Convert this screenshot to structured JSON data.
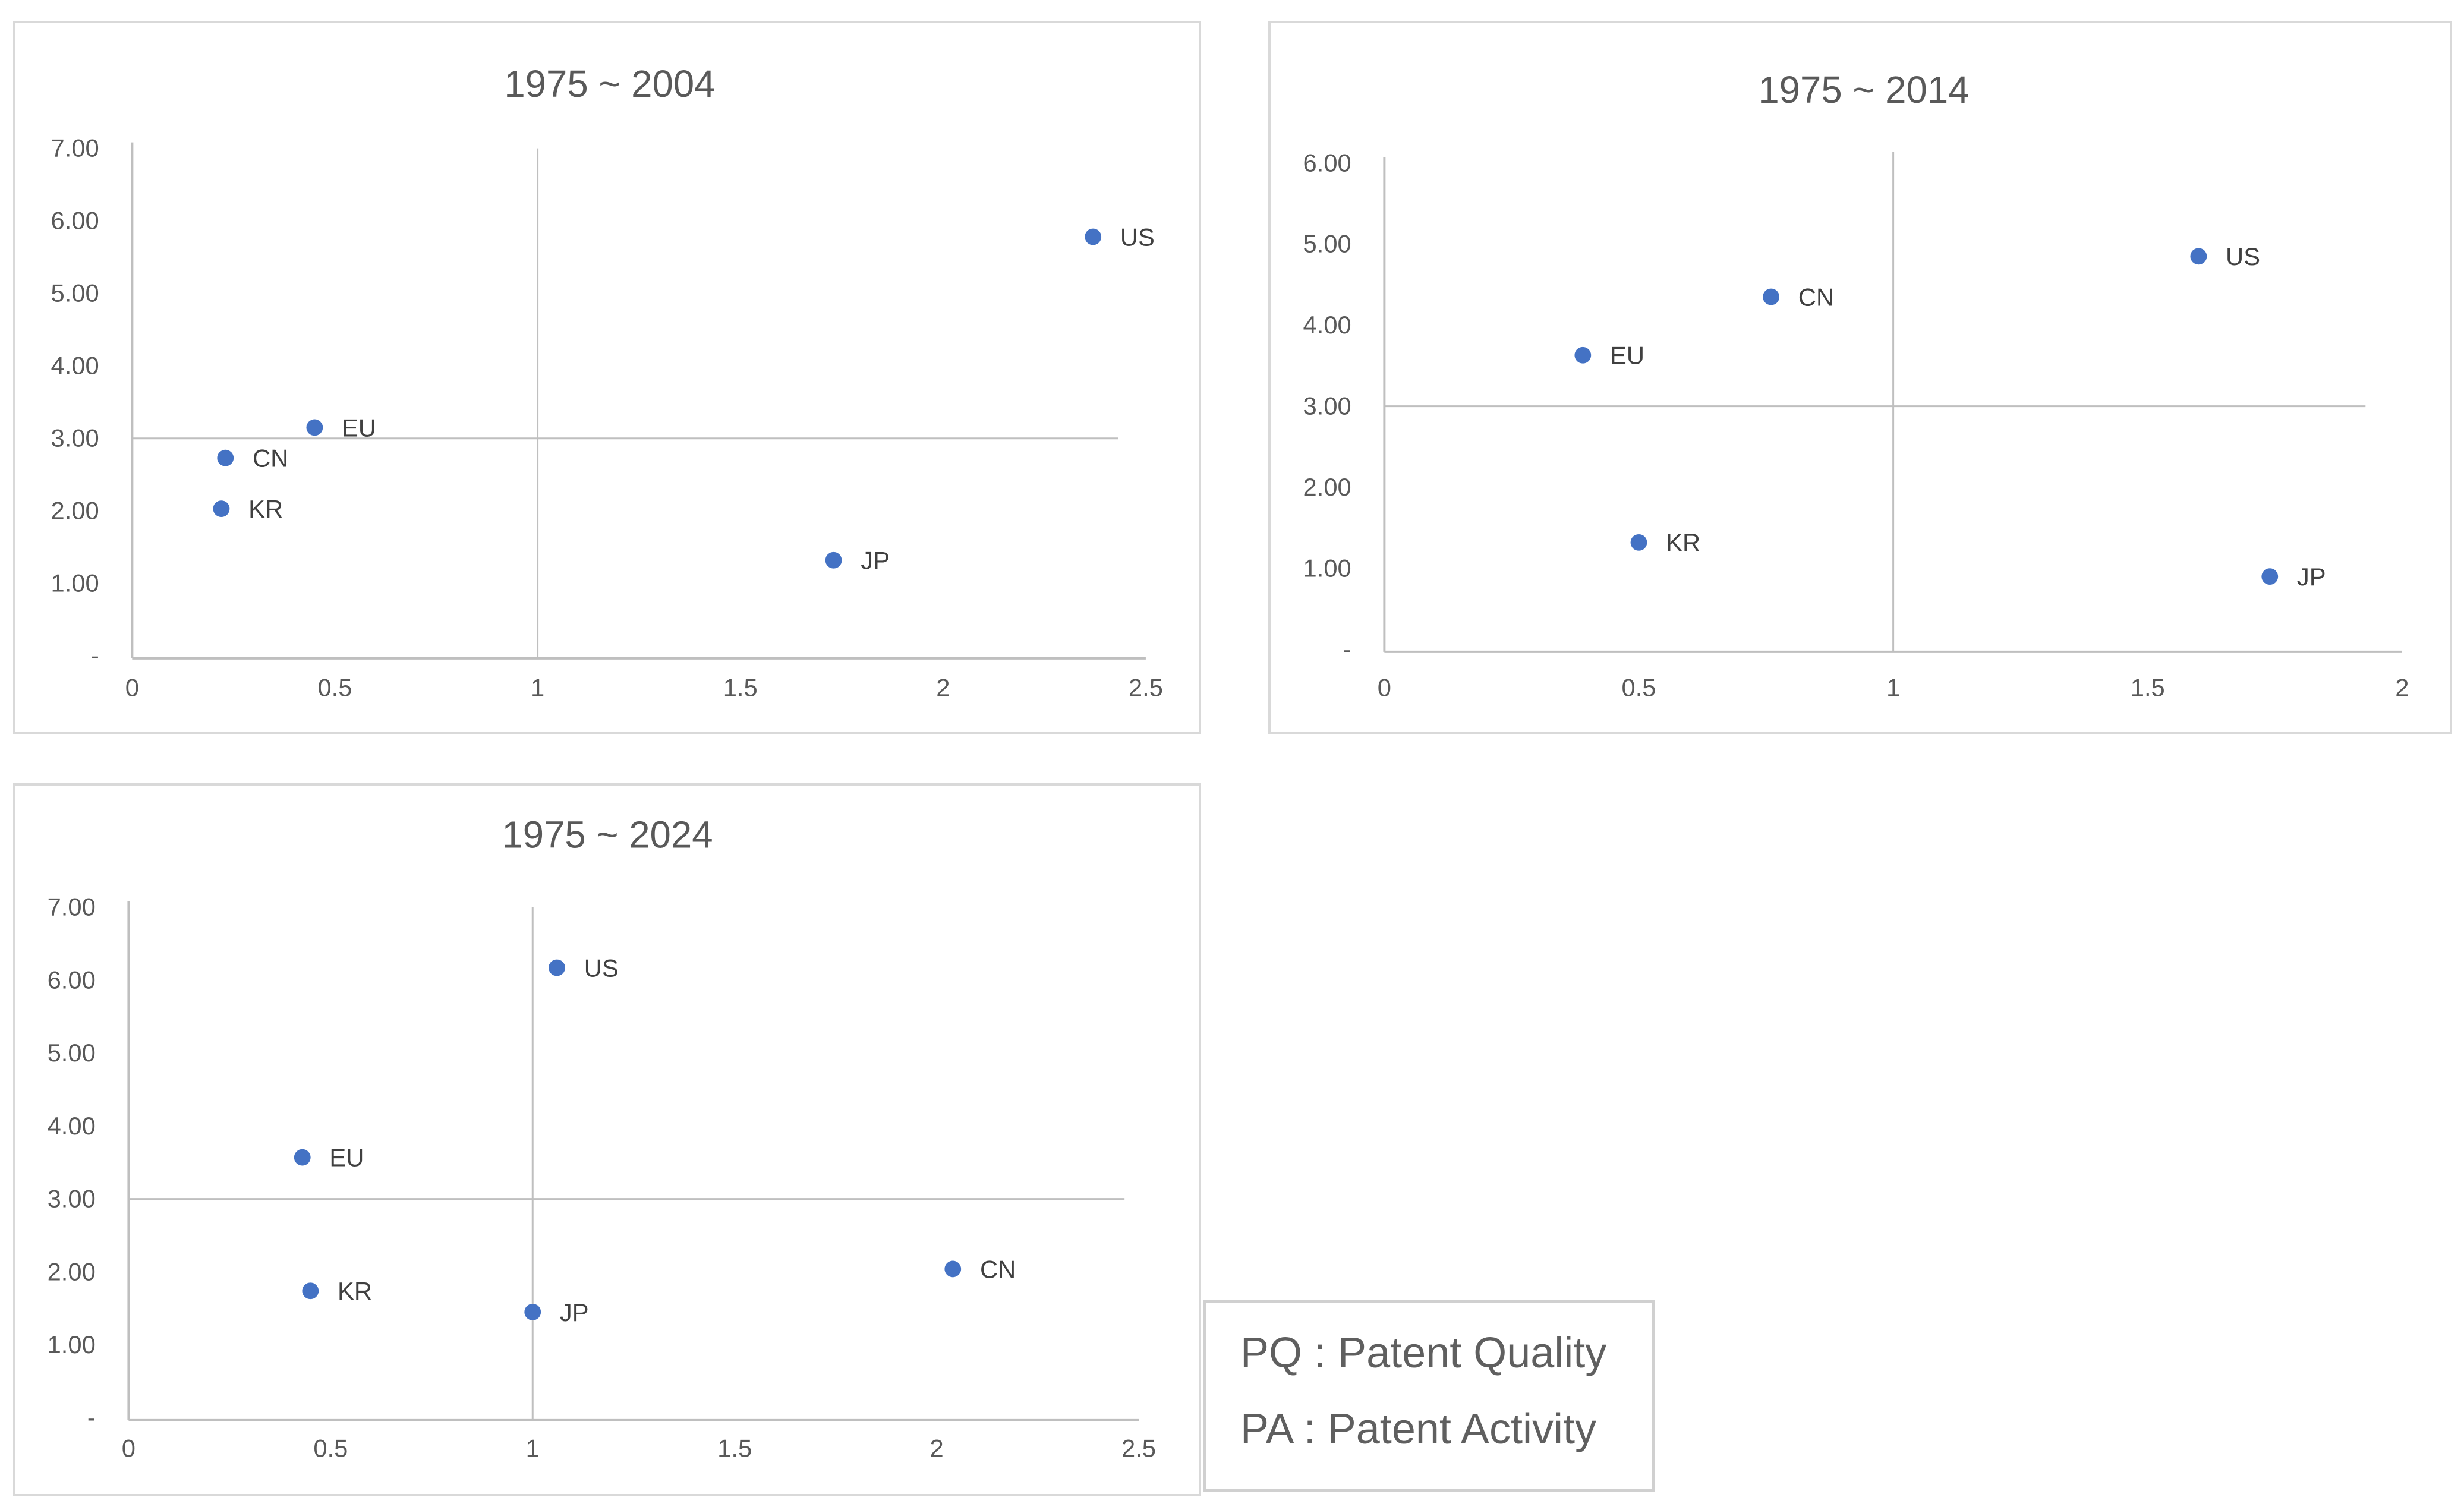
{
  "legend": {
    "pq": "PQ : Patent Quality",
    "pa": "PA : Patent Activity"
  },
  "colors": {
    "point": "#4472C4",
    "axis": "#bfbfbf",
    "quadrant": "#bfbfbf",
    "text": "#595959"
  },
  "chart_data": [
    {
      "type": "scatter",
      "title": "1975 ~ 2004",
      "xlabel": "",
      "ylabel": "",
      "xlim": [
        0,
        2.5
      ],
      "ylim": [
        0,
        7
      ],
      "x_ticks": [
        0,
        0.5,
        1,
        1.5,
        2,
        2.5
      ],
      "x_tick_labels": [
        "0",
        "0.5",
        "1",
        "1.5",
        "2",
        "2.5"
      ],
      "y_ticks": [
        0,
        1,
        2,
        3,
        4,
        5,
        6,
        7
      ],
      "y_tick_labels": [
        "-",
        "1.00",
        "2.00",
        "3.00",
        "4.00",
        "5.00",
        "6.00",
        "7.00"
      ],
      "reference_lines": {
        "x": 1,
        "y": 3
      },
      "points": [
        {
          "label": "US",
          "x": 2.37,
          "y": 5.78
        },
        {
          "label": "EU",
          "x": 0.45,
          "y": 3.15
        },
        {
          "label": "CN",
          "x": 0.23,
          "y": 2.73
        },
        {
          "label": "KR",
          "x": 0.22,
          "y": 2.03
        },
        {
          "label": "JP",
          "x": 1.73,
          "y": 1.32
        }
      ]
    },
    {
      "type": "scatter",
      "title": "1975 ~ 2014",
      "xlabel": "",
      "ylabel": "",
      "xlim": [
        0,
        2
      ],
      "ylim": [
        0,
        6
      ],
      "x_ticks": [
        0,
        0.5,
        1,
        1.5,
        2
      ],
      "x_tick_labels": [
        "0",
        "0.5",
        "1",
        "1.5",
        "2"
      ],
      "y_ticks": [
        0,
        1,
        2,
        3,
        4,
        5,
        6
      ],
      "y_tick_labels": [
        "-",
        "1.00",
        "2.00",
        "3.00",
        "4.00",
        "5.00",
        "6.00"
      ],
      "reference_lines": {
        "x": 1,
        "y": 3
      },
      "points": [
        {
          "label": "US",
          "x": 1.6,
          "y": 4.85
        },
        {
          "label": "CN",
          "x": 0.76,
          "y": 4.35
        },
        {
          "label": "EU",
          "x": 0.39,
          "y": 3.63
        },
        {
          "label": "KR",
          "x": 0.5,
          "y": 1.32
        },
        {
          "label": "JP",
          "x": 1.74,
          "y": 0.9
        }
      ]
    },
    {
      "type": "scatter",
      "title": "1975 ~ 2024",
      "xlabel": "",
      "ylabel": "",
      "xlim": [
        0,
        2.5
      ],
      "ylim": [
        0,
        7
      ],
      "x_ticks": [
        0,
        0.5,
        1,
        1.5,
        2,
        2.5
      ],
      "x_tick_labels": [
        "0",
        "0.5",
        "1",
        "1.5",
        "2",
        "2.5"
      ],
      "y_ticks": [
        0,
        1,
        2,
        3,
        4,
        5,
        6,
        7
      ],
      "y_tick_labels": [
        "-",
        "1.00",
        "2.00",
        "3.00",
        "4.00",
        "5.00",
        "6.00",
        "7.00"
      ],
      "reference_lines": {
        "x": 1,
        "y": 3
      },
      "points": [
        {
          "label": "US",
          "x": 1.06,
          "y": 6.17
        },
        {
          "label": "EU",
          "x": 0.43,
          "y": 3.57
        },
        {
          "label": "CN",
          "x": 2.04,
          "y": 2.04
        },
        {
          "label": "KR",
          "x": 0.45,
          "y": 1.74
        },
        {
          "label": "JP",
          "x": 1.0,
          "y": 1.45
        }
      ]
    }
  ]
}
